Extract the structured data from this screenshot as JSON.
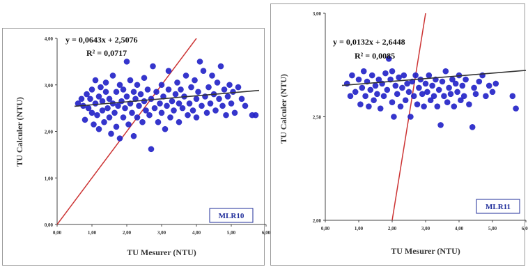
{
  "chart_data": [
    {
      "type": "scatter",
      "xlabel": "TU Mesurer (NTU)",
      "ylabel": "TU Calculer (NTU)",
      "xlim": [
        0,
        6
      ],
      "ylim": [
        0,
        4
      ],
      "x_tick_labels": [
        "0,00",
        "1,00",
        "2,00",
        "3,00",
        "4,00",
        "5,00",
        "6,00"
      ],
      "y_tick_labels": [
        "0,00",
        "1,00",
        "2,00",
        "3,00",
        "4,00"
      ],
      "equation": "y = 0,0643x + 2,5076",
      "r_squared": "R² = 0,0717",
      "model_label": "MLR10",
      "trendline": {
        "slope": 0.0643,
        "intercept": 2.5076,
        "x_range": [
          0.5,
          5.8
        ]
      },
      "identity_line": true,
      "series_marker_color": "#2424c8",
      "trend_color": "#333333",
      "identity_color": "#cc3333",
      "points": [
        [
          0.6,
          2.6
        ],
        [
          0.7,
          2.7
        ],
        [
          0.75,
          2.55
        ],
        [
          0.8,
          2.25
        ],
        [
          0.85,
          2.8
        ],
        [
          0.9,
          2.5
        ],
        [
          0.95,
          2.7
        ],
        [
          1.0,
          2.4
        ],
        [
          1.0,
          2.9
        ],
        [
          1.05,
          2.15
        ],
        [
          1.1,
          2.6
        ],
        [
          1.1,
          3.1
        ],
        [
          1.15,
          2.35
        ],
        [
          1.2,
          2.75
        ],
        [
          1.2,
          2.05
        ],
        [
          1.25,
          2.95
        ],
        [
          1.3,
          2.45
        ],
        [
          1.3,
          2.65
        ],
        [
          1.35,
          2.2
        ],
        [
          1.4,
          2.85
        ],
        [
          1.4,
          3.05
        ],
        [
          1.45,
          2.5
        ],
        [
          1.5,
          2.3
        ],
        [
          1.5,
          2.7
        ],
        [
          1.55,
          1.95
        ],
        [
          1.6,
          2.6
        ],
        [
          1.6,
          3.2
        ],
        [
          1.65,
          2.4
        ],
        [
          1.7,
          2.85
        ],
        [
          1.7,
          2.1
        ],
        [
          1.75,
          2.55
        ],
        [
          1.8,
          3.0
        ],
        [
          1.8,
          1.85
        ],
        [
          1.85,
          2.65
        ],
        [
          1.9,
          2.3
        ],
        [
          1.9,
          2.9
        ],
        [
          1.95,
          2.5
        ],
        [
          2.0,
          3.5
        ],
        [
          2.0,
          2.75
        ],
        [
          2.05,
          2.15
        ],
        [
          2.1,
          2.6
        ],
        [
          2.1,
          3.1
        ],
        [
          2.15,
          2.4
        ],
        [
          2.2,
          2.85
        ],
        [
          2.2,
          1.9
        ],
        [
          2.25,
          2.7
        ],
        [
          2.3,
          3.0
        ],
        [
          2.3,
          2.3
        ],
        [
          2.35,
          2.55
        ],
        [
          2.4,
          2.8
        ],
        [
          2.45,
          2.2
        ],
        [
          2.5,
          2.65
        ],
        [
          2.5,
          3.15
        ],
        [
          2.55,
          2.45
        ],
        [
          2.6,
          2.9
        ],
        [
          2.65,
          2.35
        ],
        [
          2.7,
          2.7
        ],
        [
          2.7,
          1.62
        ],
        [
          2.75,
          3.4
        ],
        [
          2.8,
          2.5
        ],
        [
          2.85,
          2.85
        ],
        [
          2.9,
          2.2
        ],
        [
          2.95,
          2.6
        ],
        [
          3.0,
          3.0
        ],
        [
          3.0,
          2.4
        ],
        [
          3.05,
          2.75
        ],
        [
          3.1,
          2.05
        ],
        [
          3.15,
          2.55
        ],
        [
          3.2,
          2.9
        ],
        [
          3.2,
          3.3
        ],
        [
          3.25,
          2.3
        ],
        [
          3.3,
          2.65
        ],
        [
          3.35,
          2.45
        ],
        [
          3.4,
          2.8
        ],
        [
          3.45,
          3.05
        ],
        [
          3.5,
          2.6
        ],
        [
          3.5,
          2.2
        ],
        [
          3.55,
          2.9
        ],
        [
          3.6,
          2.5
        ],
        [
          3.65,
          2.75
        ],
        [
          3.7,
          3.2
        ],
        [
          3.75,
          2.35
        ],
        [
          3.8,
          2.6
        ],
        [
          3.85,
          2.95
        ],
        [
          3.9,
          2.45
        ],
        [
          3.95,
          3.1
        ],
        [
          4.0,
          2.7
        ],
        [
          4.0,
          2.3
        ],
        [
          4.05,
          2.85
        ],
        [
          4.1,
          3.5
        ],
        [
          4.15,
          2.55
        ],
        [
          4.2,
          3.3
        ],
        [
          4.25,
          2.75
        ],
        [
          4.3,
          2.4
        ],
        [
          4.35,
          2.95
        ],
        [
          4.4,
          2.6
        ],
        [
          4.45,
          3.2
        ],
        [
          4.5,
          2.8
        ],
        [
          4.55,
          2.45
        ],
        [
          4.6,
          3.05
        ],
        [
          4.65,
          2.7
        ],
        [
          4.7,
          3.4
        ],
        [
          4.75,
          2.55
        ],
        [
          4.8,
          2.9
        ],
        [
          4.85,
          2.35
        ],
        [
          4.9,
          2.75
        ],
        [
          4.95,
          3.0
        ],
        [
          5.0,
          2.6
        ],
        [
          5.05,
          2.85
        ],
        [
          5.1,
          2.4
        ],
        [
          5.2,
          2.95
        ],
        [
          5.3,
          2.7
        ],
        [
          5.4,
          2.55
        ],
        [
          5.6,
          2.35
        ],
        [
          5.7,
          2.35
        ]
      ]
    },
    {
      "type": "scatter",
      "xlabel": "TU Mesurer (NTU)",
      "ylabel": "TU Calculer (NTU)",
      "xlim": [
        0,
        6
      ],
      "ylim": [
        2,
        3
      ],
      "x_tick_labels": [
        "0,00",
        "1,00",
        "2,00",
        "3,00",
        "4,00",
        "5,00",
        "6,00"
      ],
      "y_tick_labels": [
        "2,00",
        "2,50",
        "3,00"
      ],
      "equation": "y = 0,0132x + 2,6448",
      "r_squared": "R² = 0,0085",
      "model_label": "MLR11",
      "trendline": {
        "slope": 0.0132,
        "intercept": 2.6448,
        "x_range": [
          0.5,
          6.0
        ]
      },
      "identity_line": true,
      "series_marker_color": "#2424c8",
      "trend_color": "#333333",
      "identity_color": "#cc3333",
      "points": [
        [
          0.65,
          2.66
        ],
        [
          0.75,
          2.6
        ],
        [
          0.8,
          2.7
        ],
        [
          0.9,
          2.62
        ],
        [
          1.0,
          2.68
        ],
        [
          1.05,
          2.56
        ],
        [
          1.1,
          2.64
        ],
        [
          1.15,
          2.72
        ],
        [
          1.2,
          2.6
        ],
        [
          1.25,
          2.67
        ],
        [
          1.3,
          2.55
        ],
        [
          1.35,
          2.63
        ],
        [
          1.4,
          2.7
        ],
        [
          1.45,
          2.58
        ],
        [
          1.5,
          2.65
        ],
        [
          1.55,
          2.61
        ],
        [
          1.6,
          2.68
        ],
        [
          1.65,
          2.54
        ],
        [
          1.7,
          2.66
        ],
        [
          1.75,
          2.6
        ],
        [
          1.8,
          2.71
        ],
        [
          1.85,
          2.63
        ],
        [
          1.9,
          2.78
        ],
        [
          1.95,
          2.68
        ],
        [
          2.0,
          2.72
        ],
        [
          2.0,
          2.57
        ],
        [
          2.05,
          2.5
        ],
        [
          2.1,
          2.65
        ],
        [
          2.15,
          2.61
        ],
        [
          2.2,
          2.69
        ],
        [
          2.25,
          2.55
        ],
        [
          2.3,
          2.64
        ],
        [
          2.35,
          2.7
        ],
        [
          2.4,
          2.58
        ],
        [
          2.45,
          2.66
        ],
        [
          2.5,
          2.62
        ],
        [
          2.55,
          2.5
        ],
        [
          2.6,
          2.67
        ],
        [
          2.65,
          2.6
        ],
        [
          2.7,
          2.7
        ],
        [
          2.75,
          2.56
        ],
        [
          2.8,
          2.64
        ],
        [
          2.85,
          2.68
        ],
        [
          2.9,
          2.61
        ],
        [
          2.95,
          2.55
        ],
        [
          3.0,
          2.66
        ],
        [
          3.05,
          2.62
        ],
        [
          3.1,
          2.7
        ],
        [
          3.15,
          2.58
        ],
        [
          3.2,
          2.65
        ],
        [
          3.25,
          2.6
        ],
        [
          3.3,
          2.68
        ],
        [
          3.35,
          2.55
        ],
        [
          3.4,
          2.63
        ],
        [
          3.45,
          2.46
        ],
        [
          3.5,
          2.67
        ],
        [
          3.55,
          2.6
        ],
        [
          3.6,
          2.72
        ],
        [
          3.65,
          2.57
        ],
        [
          3.7,
          2.64
        ],
        [
          3.75,
          2.61
        ],
        [
          3.8,
          2.68
        ],
        [
          3.85,
          2.55
        ],
        [
          3.9,
          2.66
        ],
        [
          3.95,
          2.62
        ],
        [
          4.0,
          2.7
        ],
        [
          4.05,
          2.58
        ],
        [
          4.1,
          2.65
        ],
        [
          4.15,
          2.6
        ],
        [
          4.2,
          2.68
        ],
        [
          4.3,
          2.56
        ],
        [
          4.4,
          2.45
        ],
        [
          4.45,
          2.64
        ],
        [
          4.5,
          2.61
        ],
        [
          4.6,
          2.67
        ],
        [
          4.7,
          2.7
        ],
        [
          4.8,
          2.6
        ],
        [
          4.9,
          2.65
        ],
        [
          5.0,
          2.62
        ],
        [
          5.1,
          2.66
        ],
        [
          5.6,
          2.6
        ],
        [
          5.7,
          2.54
        ]
      ]
    }
  ]
}
